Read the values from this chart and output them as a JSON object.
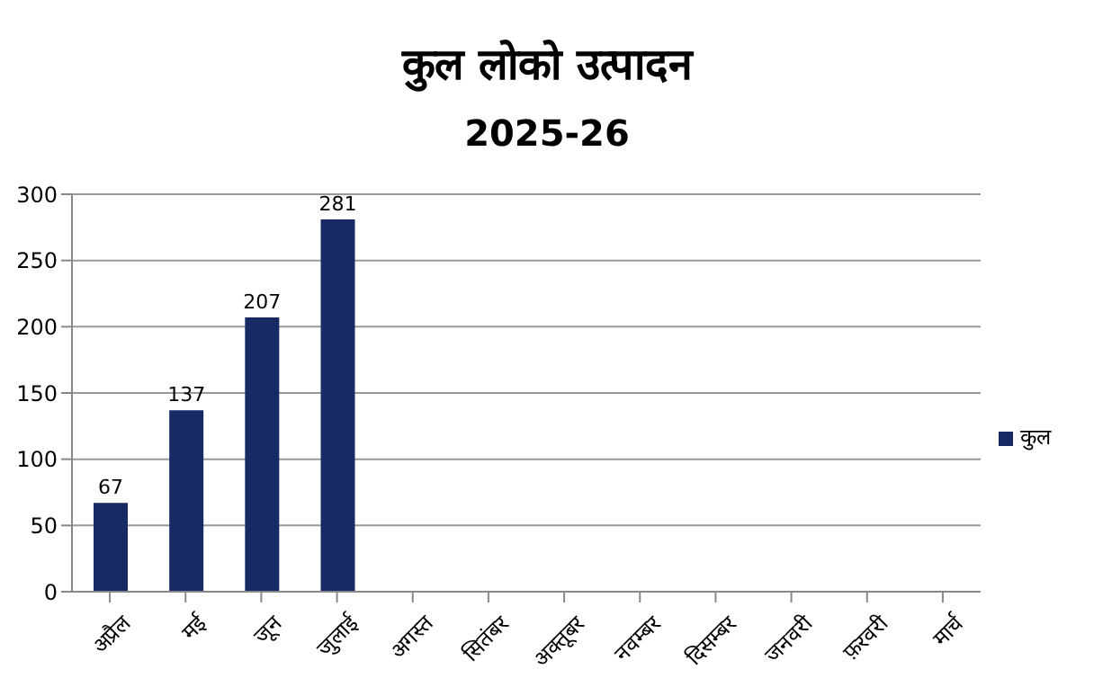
{
  "chart_data": {
    "type": "bar",
    "title": "कुल लोको उत्पादन",
    "subtitle": "2025-26",
    "categories": [
      "अप्रैल",
      "मई",
      "जून",
      "जुलाई",
      "अगस्त",
      "सितंबर",
      "अक्तूबर",
      "नवम्बर",
      "दिसम्बर",
      "जनवरी",
      "फ़रवरी",
      "मार्च"
    ],
    "series": [
      {
        "name": "कुल",
        "color": "#172a66",
        "values": [
          67,
          137,
          207,
          281,
          null,
          null,
          null,
          null,
          null,
          null,
          null,
          null
        ]
      }
    ],
    "ylim": [
      0,
      300
    ],
    "yticks": [
      0,
      50,
      100,
      150,
      200,
      250,
      300
    ],
    "grid": "y",
    "legend": "right",
    "data_labels": true
  }
}
